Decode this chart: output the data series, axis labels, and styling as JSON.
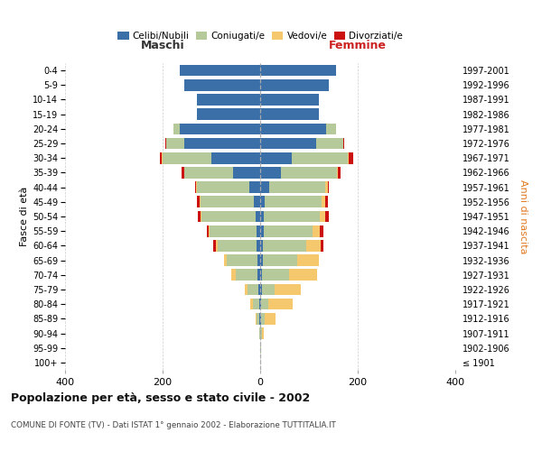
{
  "age_groups": [
    "100+",
    "95-99",
    "90-94",
    "85-89",
    "80-84",
    "75-79",
    "70-74",
    "65-69",
    "60-64",
    "55-59",
    "50-54",
    "45-49",
    "40-44",
    "35-39",
    "30-34",
    "25-29",
    "20-24",
    "15-19",
    "10-14",
    "5-9",
    "0-4"
  ],
  "birth_years": [
    "≤ 1901",
    "1902-1906",
    "1907-1911",
    "1912-1916",
    "1917-1921",
    "1922-1926",
    "1927-1931",
    "1932-1936",
    "1937-1941",
    "1942-1946",
    "1947-1951",
    "1952-1956",
    "1957-1961",
    "1962-1966",
    "1967-1971",
    "1972-1976",
    "1977-1981",
    "1982-1986",
    "1987-1991",
    "1992-1996",
    "1997-2001"
  ],
  "male_celibi": [
    0,
    0,
    0,
    1,
    2,
    4,
    5,
    6,
    7,
    8,
    10,
    13,
    22,
    55,
    100,
    155,
    165,
    130,
    130,
    155,
    165
  ],
  "male_coniugati": [
    0,
    0,
    2,
    6,
    12,
    22,
    45,
    62,
    80,
    95,
    110,
    110,
    108,
    100,
    100,
    38,
    12,
    0,
    0,
    0,
    0
  ],
  "male_vedovi": [
    0,
    0,
    0,
    3,
    6,
    6,
    9,
    6,
    4,
    2,
    2,
    1,
    1,
    1,
    1,
    0,
    0,
    0,
    0,
    0,
    0
  ],
  "male_divorziati": [
    0,
    0,
    0,
    0,
    0,
    0,
    0,
    0,
    5,
    5,
    6,
    6,
    2,
    6,
    5,
    2,
    0,
    0,
    0,
    0,
    0
  ],
  "female_nubili": [
    0,
    0,
    0,
    1,
    2,
    3,
    4,
    5,
    6,
    7,
    8,
    10,
    18,
    42,
    65,
    115,
    135,
    120,
    120,
    140,
    155
  ],
  "female_coniugate": [
    0,
    1,
    3,
    8,
    15,
    26,
    55,
    70,
    88,
    100,
    115,
    115,
    115,
    115,
    115,
    55,
    20,
    0,
    0,
    0,
    0
  ],
  "female_vedove": [
    0,
    1,
    4,
    22,
    50,
    55,
    58,
    45,
    30,
    15,
    10,
    8,
    5,
    2,
    2,
    0,
    0,
    0,
    0,
    0,
    0
  ],
  "female_divorziate": [
    0,
    0,
    0,
    0,
    0,
    0,
    0,
    0,
    6,
    8,
    8,
    5,
    2,
    5,
    8,
    3,
    1,
    0,
    0,
    0,
    0
  ],
  "color_celibi": "#3a6fa8",
  "color_coniugati": "#b5c99a",
  "color_vedovi": "#f5c86e",
  "color_divorziati": "#cc1111",
  "title": "Popolazione per età, sesso e stato civile - 2002",
  "subtitle": "COMUNE DI FONTE (TV) - Dati ISTAT 1° gennaio 2002 - Elaborazione TUTTITALIA.IT",
  "legend_labels": [
    "Celibi/Nubili",
    "Coniugati/e",
    "Vedovi/e",
    "Divorziati/e"
  ],
  "ylabel_left": "Fasce di età",
  "ylabel_right": "Anni di nascita",
  "maschi_label": "Maschi",
  "femmine_label": "Femmine",
  "xlim": 400,
  "bg": "#ffffff",
  "grid_color": "#cccccc"
}
